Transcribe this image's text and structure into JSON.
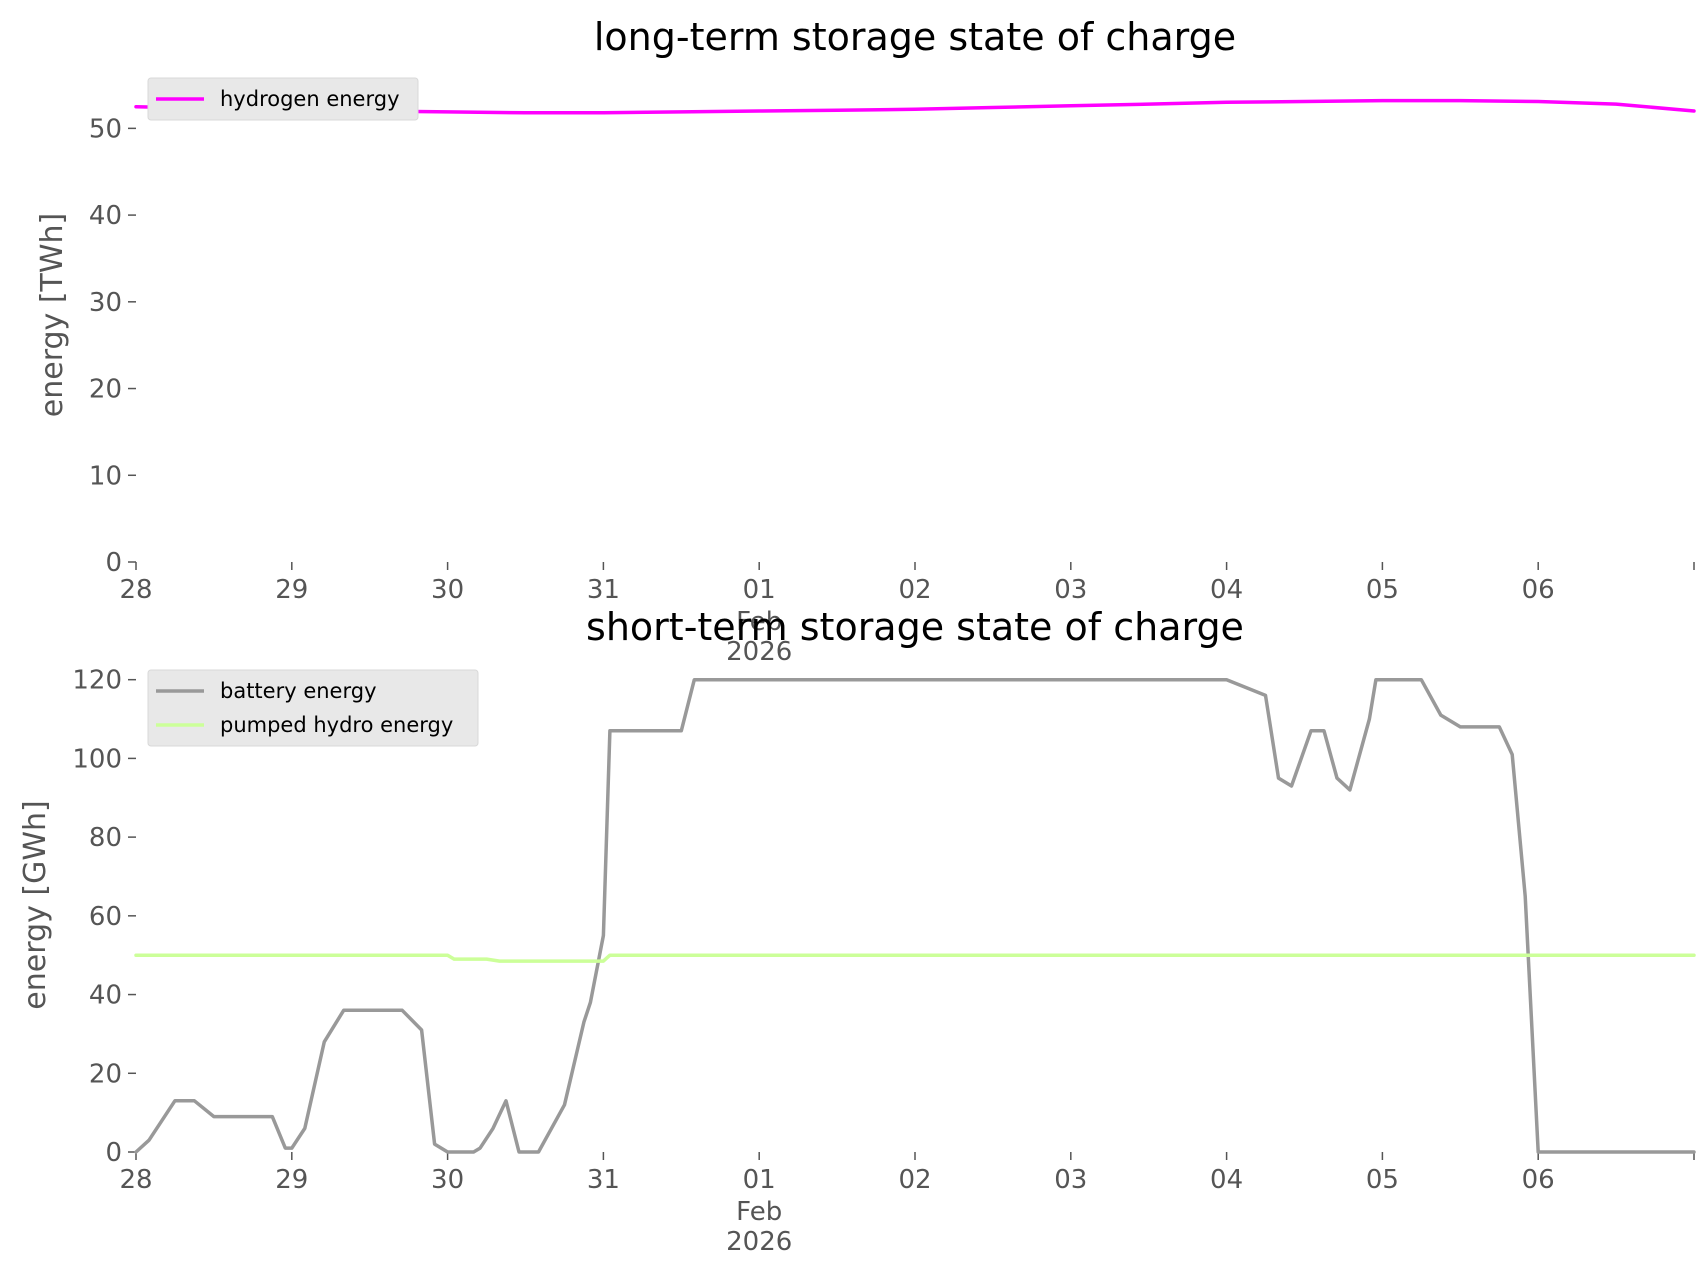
{
  "chart_data": [
    {
      "type": "line",
      "title": "long-term storage state of charge",
      "xlabel": "",
      "ylabel": "energy [TWh]",
      "ylim": [
        0,
        55
      ],
      "yticks": [
        0,
        10,
        20,
        30,
        40,
        50
      ],
      "xlim": [
        "2026-01-28T00:00",
        "2026-02-07T00:00"
      ],
      "xticks": [
        {
          "date": "2026-01-28",
          "label": "28"
        },
        {
          "date": "2026-01-29",
          "label": "29"
        },
        {
          "date": "2026-01-30",
          "label": "30"
        },
        {
          "date": "2026-01-31",
          "label": "31"
        },
        {
          "date": "2026-02-01",
          "label": "01",
          "label2": "Feb",
          "label3": "2026"
        },
        {
          "date": "2026-02-02",
          "label": "02"
        },
        {
          "date": "2026-02-03",
          "label": "03"
        },
        {
          "date": "2026-02-04",
          "label": "04"
        },
        {
          "date": "2026-02-05",
          "label": "05"
        },
        {
          "date": "2026-02-06",
          "label": "06"
        },
        {
          "date": "2026-02-07",
          "label": ""
        }
      ],
      "grid": false,
      "legend_position": "top-left",
      "series": [
        {
          "name": "hydrogen energy",
          "color": "#ff00ff",
          "x": [
            "2026-01-28T00:00",
            "2026-01-28T12:00",
            "2026-01-29T00:00",
            "2026-01-29T12:00",
            "2026-01-30T00:00",
            "2026-01-30T12:00",
            "2026-01-31T00:00",
            "2026-01-31T12:00",
            "2026-02-01T00:00",
            "2026-02-01T12:00",
            "2026-02-02T00:00",
            "2026-02-02T12:00",
            "2026-02-03T00:00",
            "2026-02-03T12:00",
            "2026-02-04T00:00",
            "2026-02-04T12:00",
            "2026-02-05T00:00",
            "2026-02-05T12:00",
            "2026-02-06T00:00",
            "2026-02-06T12:00",
            "2026-02-07T00:00"
          ],
          "y": [
            52.5,
            52.3,
            52.1,
            52.0,
            51.9,
            51.8,
            51.8,
            51.9,
            52.0,
            52.1,
            52.2,
            52.4,
            52.6,
            52.8,
            53.0,
            53.1,
            53.2,
            53.2,
            53.1,
            52.8,
            52.0
          ]
        }
      ]
    },
    {
      "type": "line",
      "title": "short-term storage state of charge",
      "xlabel": "",
      "ylabel": "energy [GWh]",
      "ylim": [
        0,
        125
      ],
      "yticks": [
        0,
        20,
        40,
        60,
        80,
        100,
        120
      ],
      "xlim": [
        "2026-01-28T00:00",
        "2026-02-07T00:00"
      ],
      "xticks": [
        {
          "date": "2026-01-28",
          "label": "28"
        },
        {
          "date": "2026-01-29",
          "label": "29"
        },
        {
          "date": "2026-01-30",
          "label": "30"
        },
        {
          "date": "2026-01-31",
          "label": "31"
        },
        {
          "date": "2026-02-01",
          "label": "01",
          "label2": "Feb",
          "label3": "2026"
        },
        {
          "date": "2026-02-02",
          "label": "02"
        },
        {
          "date": "2026-02-03",
          "label": "03"
        },
        {
          "date": "2026-02-04",
          "label": "04"
        },
        {
          "date": "2026-02-05",
          "label": "05"
        },
        {
          "date": "2026-02-06",
          "label": "06"
        },
        {
          "date": "2026-02-07",
          "label": ""
        }
      ],
      "grid": false,
      "legend_position": "top-left",
      "series": [
        {
          "name": "battery energy",
          "color": "#999999",
          "x": [
            "2026-01-28T00:00",
            "2026-01-28T02:00",
            "2026-01-28T06:00",
            "2026-01-28T09:00",
            "2026-01-28T12:00",
            "2026-01-28T15:00",
            "2026-01-28T18:00",
            "2026-01-28T21:00",
            "2026-01-28T23:00",
            "2026-01-29T00:00",
            "2026-01-29T02:00",
            "2026-01-29T05:00",
            "2026-01-29T08:00",
            "2026-01-29T12:00",
            "2026-01-29T17:00",
            "2026-01-29T20:00",
            "2026-01-29T22:00",
            "2026-01-30T00:00",
            "2026-01-30T04:00",
            "2026-01-30T05:00",
            "2026-01-30T07:00",
            "2026-01-30T09:00",
            "2026-01-30T11:00",
            "2026-01-30T14:00",
            "2026-01-30T18:00",
            "2026-01-30T21:00",
            "2026-01-30T22:00",
            "2026-01-31T00:00",
            "2026-01-31T01:00",
            "2026-01-31T04:00",
            "2026-01-31T08:00",
            "2026-01-31T12:00",
            "2026-01-31T14:00",
            "2026-02-01T00:00",
            "2026-02-04T00:00",
            "2026-02-04T06:00",
            "2026-02-04T08:00",
            "2026-02-04T10:00",
            "2026-02-04T13:00",
            "2026-02-04T15:00",
            "2026-02-04T17:00",
            "2026-02-04T19:00",
            "2026-02-04T22:00",
            "2026-02-04T23:00",
            "2026-02-05T06:00",
            "2026-02-05T09:00",
            "2026-02-05T12:00",
            "2026-02-05T15:00",
            "2026-02-05T18:00",
            "2026-02-05T20:00",
            "2026-02-05T22:00",
            "2026-02-06T00:00",
            "2026-02-07T00:00"
          ],
          "y": [
            0,
            3,
            13,
            13,
            9,
            9,
            9,
            9,
            1,
            1,
            6,
            28,
            36,
            36,
            36,
            31,
            2,
            0,
            0,
            1,
            6,
            13,
            0,
            0,
            12,
            33,
            38,
            55,
            107,
            107,
            107,
            107,
            120,
            120,
            120,
            116,
            95,
            93,
            107,
            107,
            95,
            92,
            110,
            120,
            120,
            111,
            108,
            108,
            108,
            101,
            65,
            0,
            0
          ]
        },
        {
          "name": "pumped hydro energy",
          "color": "#ccff99",
          "x": [
            "2026-01-28T00:00",
            "2026-01-29T00:00",
            "2026-01-30T00:00",
            "2026-01-30T01:00",
            "2026-01-30T06:00",
            "2026-01-30T08:00",
            "2026-01-31T00:00",
            "2026-01-31T01:00",
            "2026-02-01T00:00",
            "2026-02-04T00:00",
            "2026-02-07T00:00"
          ],
          "y": [
            50,
            50,
            50,
            49,
            49,
            48.5,
            48.5,
            50,
            50,
            50,
            50
          ]
        }
      ]
    }
  ]
}
